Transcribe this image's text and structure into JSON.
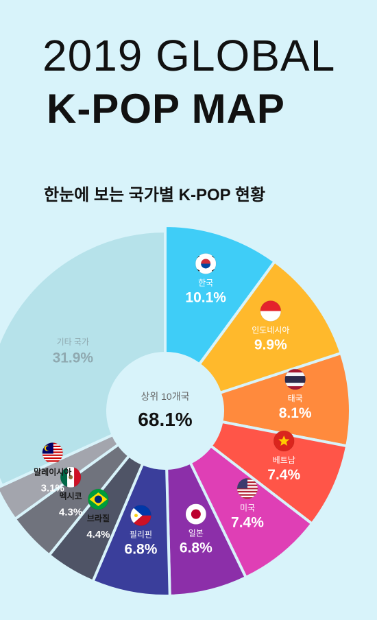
{
  "header": {
    "title_line1": "2019 GLOBAL",
    "title_line2": "K-POP MAP",
    "subtitle": "한눈에 보는 국가별 K-POP 현황"
  },
  "chart_data": {
    "type": "pie",
    "center_label": "상위 10개국",
    "center_value": "68.1%",
    "slices": [
      {
        "label": "한국",
        "value": 10.1,
        "display": "10.1%",
        "color": "#3fcdf7",
        "text_color": "#ffffff",
        "icon": "korea-flag-icon"
      },
      {
        "label": "인도네시아",
        "value": 9.9,
        "display": "9.9%",
        "color": "#ffb92c",
        "text_color": "#ffffff",
        "icon": "indonesia-flag-icon"
      },
      {
        "label": "태국",
        "value": 8.1,
        "display": "8.1%",
        "color": "#ff8a3d",
        "text_color": "#ffffff",
        "icon": "thailand-flag-icon"
      },
      {
        "label": "베트남",
        "value": 7.4,
        "display": "7.4%",
        "color": "#ff5548",
        "text_color": "#ffffff",
        "icon": "vietnam-flag-icon"
      },
      {
        "label": "미국",
        "value": 7.4,
        "display": "7.4%",
        "color": "#df3fb5",
        "text_color": "#ffffff",
        "icon": "usa-flag-icon"
      },
      {
        "label": "일본",
        "value": 6.8,
        "display": "6.8%",
        "color": "#8c2fa9",
        "text_color": "#ffffff",
        "icon": "japan-flag-icon"
      },
      {
        "label": "필리핀",
        "value": 6.8,
        "display": "6.8%",
        "color": "#3a3e9b",
        "text_color": "#ffffff",
        "icon": "philippines-flag-icon"
      },
      {
        "label": "브라질",
        "value": 4.4,
        "display": "4.4%",
        "color": "#4f5466",
        "text_color": "#ffffff",
        "icon": "brazil-flag-icon"
      },
      {
        "label": "멕시코",
        "value": 4.3,
        "display": "4.3%",
        "color": "#70737d",
        "text_color": "#ffffff",
        "icon": "mexico-flag-icon"
      },
      {
        "label": "말레이시아",
        "value": 3.1,
        "display": "3.1%",
        "color": "#a3a5ad",
        "text_color": "#ffffff",
        "icon": "malaysia-flag-icon"
      },
      {
        "label": "기타 국가",
        "value": 31.9,
        "display": "31.9%",
        "color": "#b6e2ea",
        "text_color": "#8fa9b0",
        "icon": ""
      }
    ]
  }
}
